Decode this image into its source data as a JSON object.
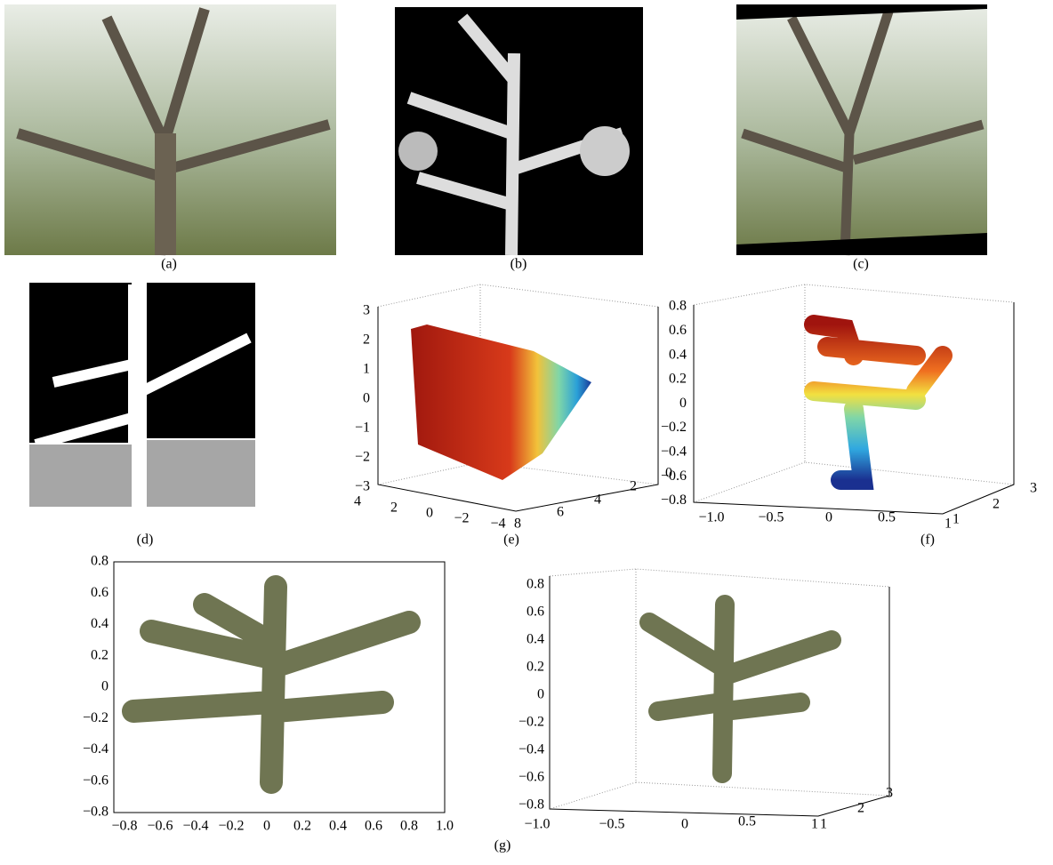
{
  "figure": {
    "a": {
      "label": "(a)"
    },
    "b": {
      "label": "(b)"
    },
    "c": {
      "label": "(c)"
    },
    "d": {
      "label": "(d)"
    },
    "e": {
      "label": "(e)",
      "z_ticks": [
        "3",
        "2",
        "1",
        "0",
        "−1",
        "−2",
        "−3"
      ],
      "x_ticks": [
        "4",
        "2",
        "0",
        "−2",
        "−4"
      ],
      "y_ticks": [
        "8",
        "6",
        "4",
        "2",
        "0"
      ]
    },
    "f": {
      "label": "(f)",
      "z_ticks": [
        "0.8",
        "0.6",
        "0.4",
        "0.2",
        "0",
        "−0.2",
        "−0.4",
        "−0.6",
        "−0.8"
      ],
      "x_ticks": [
        "−1.0",
        "−0.5",
        "0",
        "0.5",
        "1"
      ],
      "y_ticks": [
        "1",
        "2",
        "3"
      ]
    },
    "g": {
      "label": "(g)",
      "left": {
        "y_ticks": [
          "0.8",
          "0.6",
          "0.4",
          "0.2",
          "0",
          "−0.2",
          "−0.4",
          "−0.6",
          "−0.8"
        ],
        "x_ticks": [
          "−0.8",
          "−0.6",
          "−0.4",
          "−0.2",
          "0",
          "0.2",
          "0.4",
          "0.6",
          "0.8",
          "1.0"
        ]
      },
      "right": {
        "z_ticks": [
          "0.8",
          "0.6",
          "0.4",
          "0.2",
          "0",
          "−0.2",
          "−0.4",
          "−0.6",
          "−0.8"
        ],
        "x_ticks": [
          "−1.0",
          "−0.5",
          "0",
          "0.5",
          "1"
        ],
        "y_ticks": [
          "1",
          "2",
          "3"
        ]
      }
    }
  }
}
